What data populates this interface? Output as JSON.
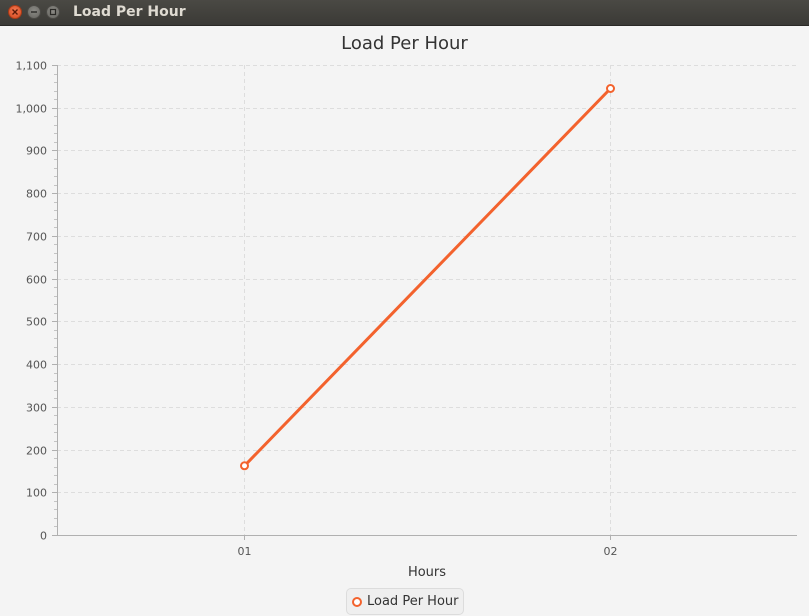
{
  "window": {
    "title": "Load Per Hour"
  },
  "chart_data": {
    "type": "line",
    "title": "Load Per Hour",
    "xlabel": "Hours",
    "ylabel": "",
    "categories": [
      "01",
      "02"
    ],
    "series": [
      {
        "name": "Load Per Hour",
        "values": [
          162,
          1045
        ],
        "color": "#f3622d"
      }
    ],
    "ylim": [
      0,
      1100
    ],
    "yticks": [
      0,
      100,
      200,
      300,
      400,
      500,
      600,
      700,
      800,
      900,
      1000,
      1100
    ],
    "ytick_labels": [
      "0",
      "100",
      "200",
      "300",
      "400",
      "500",
      "600",
      "700",
      "800",
      "900",
      "1,000",
      "1,100"
    ],
    "grid": true,
    "legend": "bottom-center"
  }
}
